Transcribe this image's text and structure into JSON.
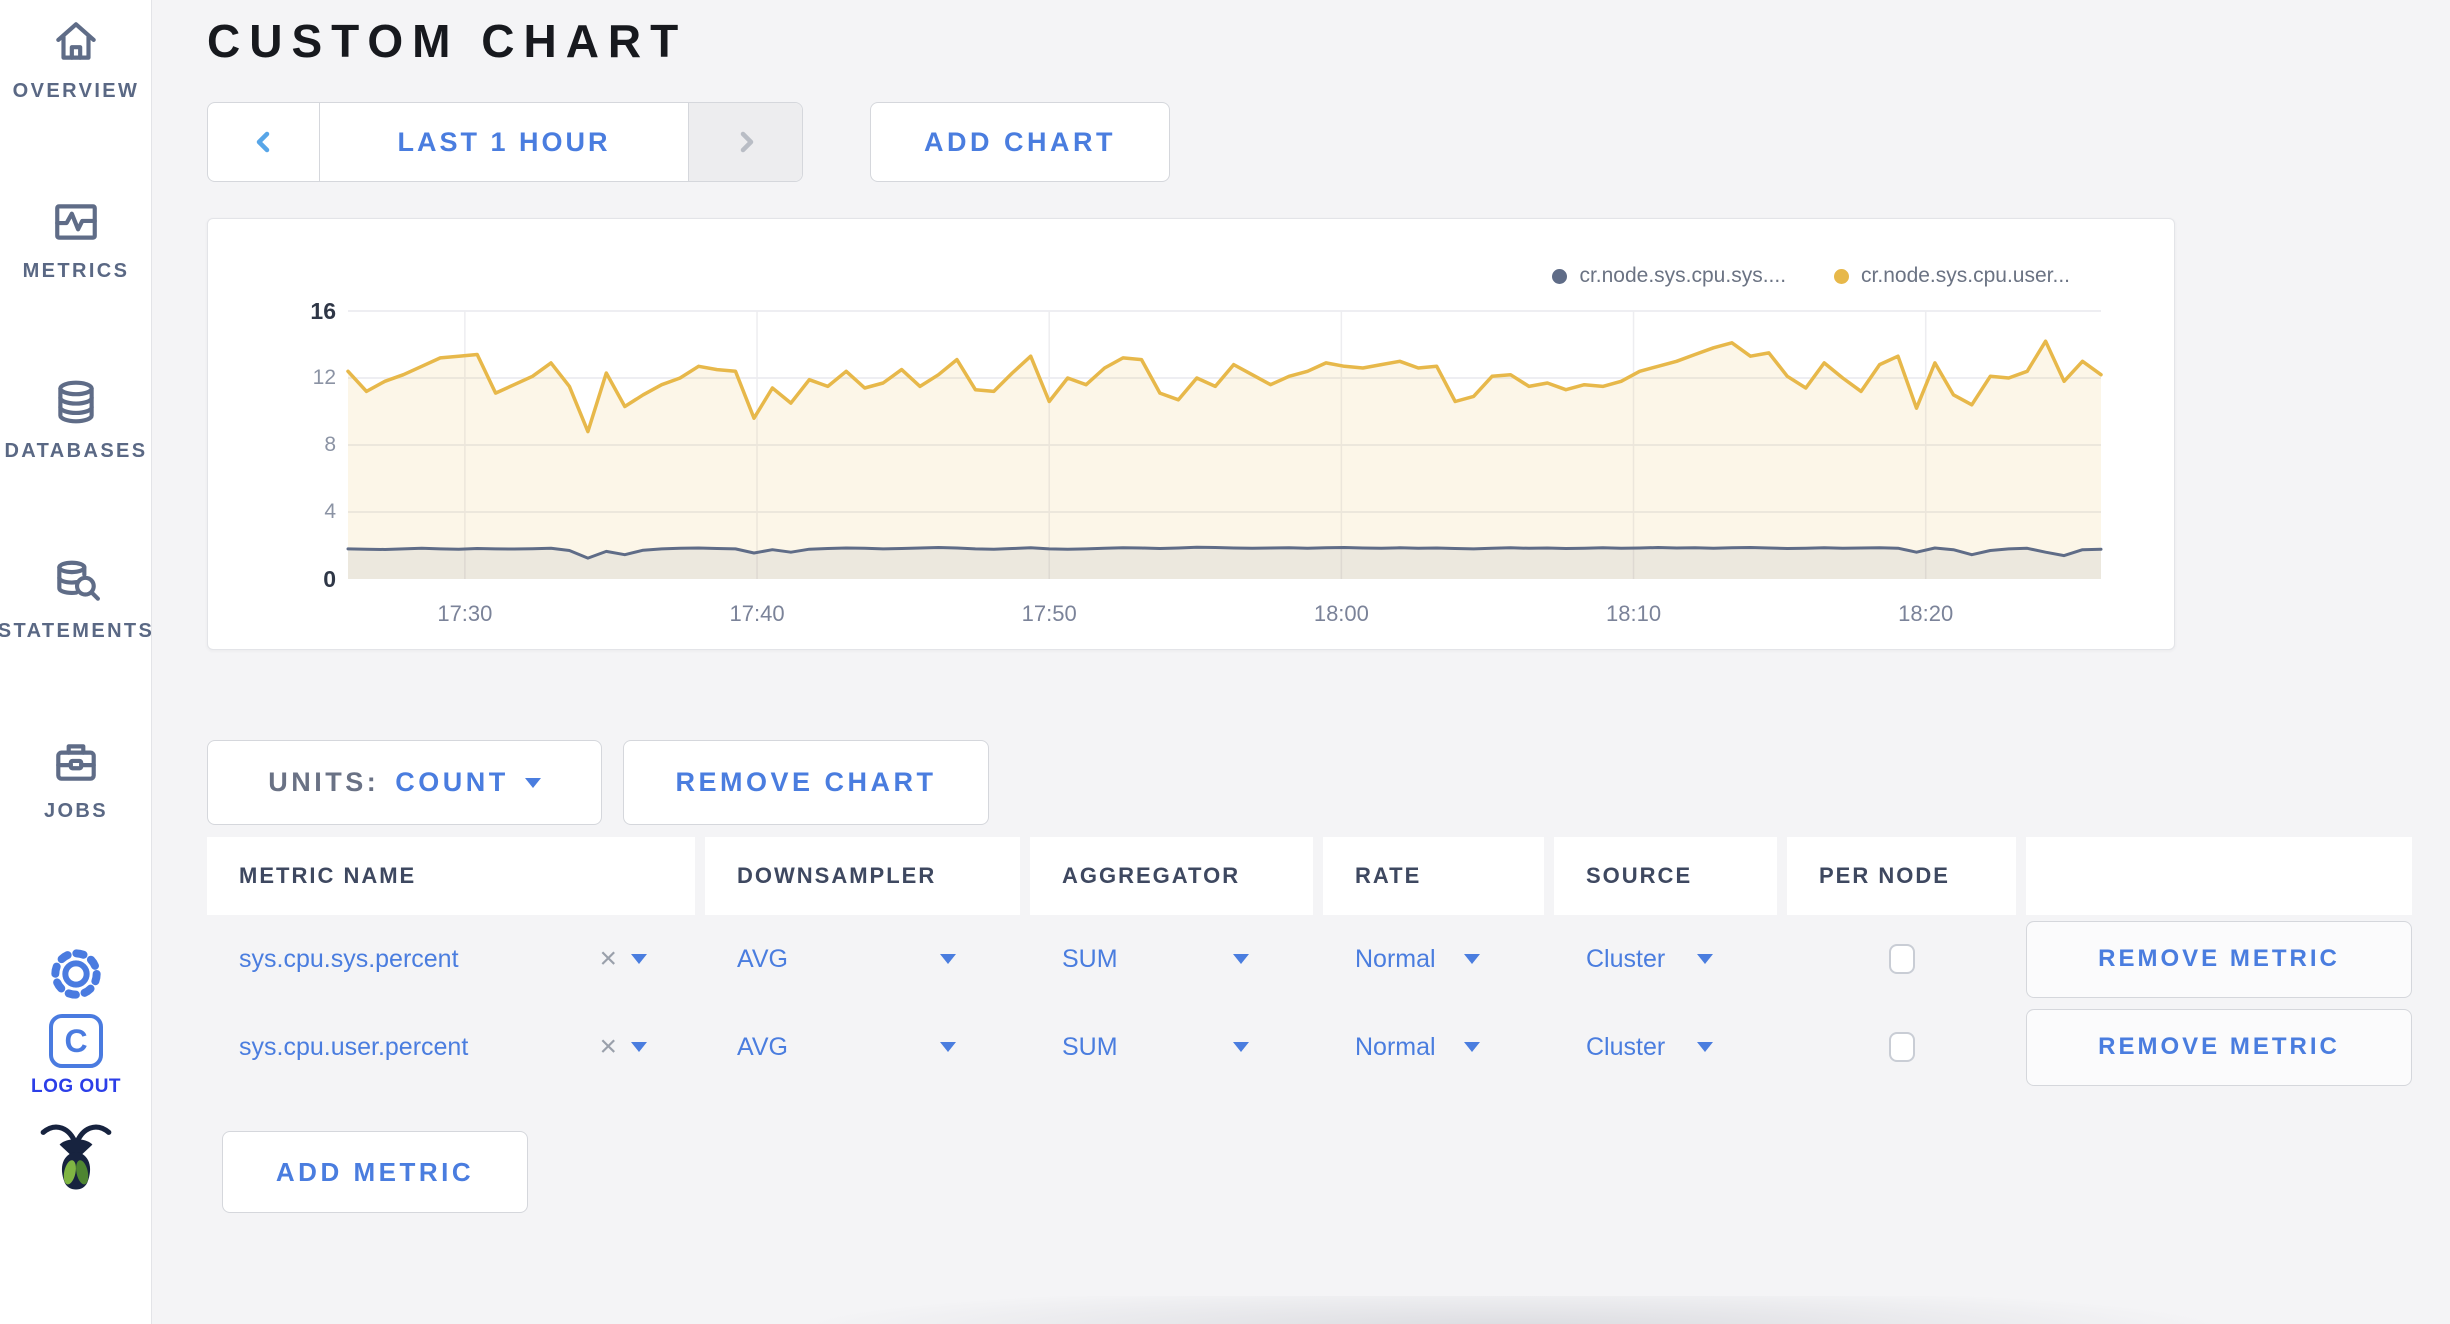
{
  "sidebar": {
    "items": [
      {
        "label": "OVERVIEW",
        "icon": "home-icon"
      },
      {
        "label": "METRICS",
        "icon": "metrics-icon"
      },
      {
        "label": "DATABASES",
        "icon": "databases-icon"
      },
      {
        "label": "STATEMENTS",
        "icon": "statements-icon"
      },
      {
        "label": "JOBS",
        "icon": "jobs-icon"
      }
    ],
    "log_out_label": "LOG OUT"
  },
  "header": {
    "title": "CUSTOM CHART"
  },
  "toolbar": {
    "time_range_label": "LAST 1 HOUR",
    "add_chart_label": "ADD CHART"
  },
  "chart_data": {
    "type": "line",
    "title": "",
    "xlabel": "",
    "ylabel": "",
    "ylim": [
      0,
      16
    ],
    "y_ticks": [
      0,
      4,
      8,
      12,
      16
    ],
    "x_range_minutes": [
      0,
      60
    ],
    "x_ticks": [
      {
        "label": "17:30",
        "minute": 4
      },
      {
        "label": "17:40",
        "minute": 14
      },
      {
        "label": "17:50",
        "minute": 24
      },
      {
        "label": "18:00",
        "minute": 34
      },
      {
        "label": "18:10",
        "minute": 44
      },
      {
        "label": "18:20",
        "minute": 54
      }
    ],
    "grid": true,
    "legend_position": "top-right",
    "series": [
      {
        "name": "cr.node.sys.cpu.sys....",
        "color": "#5f6c87",
        "fill": "rgba(95,108,135,0.10)",
        "values": [
          1.8,
          1.78,
          1.76,
          1.8,
          1.83,
          1.8,
          1.78,
          1.82,
          1.8,
          1.79,
          1.81,
          1.84,
          1.7,
          1.25,
          1.65,
          1.45,
          1.72,
          1.8,
          1.83,
          1.85,
          1.82,
          1.8,
          1.55,
          1.75,
          1.6,
          1.78,
          1.82,
          1.85,
          1.83,
          1.8,
          1.82,
          1.85,
          1.88,
          1.85,
          1.8,
          1.78,
          1.82,
          1.86,
          1.8,
          1.78,
          1.8,
          1.84,
          1.87,
          1.85,
          1.82,
          1.85,
          1.9,
          1.88,
          1.85,
          1.83,
          1.85,
          1.87,
          1.84,
          1.86,
          1.88,
          1.85,
          1.83,
          1.86,
          1.84,
          1.85,
          1.82,
          1.8,
          1.84,
          1.86,
          1.83,
          1.85,
          1.82,
          1.84,
          1.86,
          1.83,
          1.85,
          1.88,
          1.85,
          1.87,
          1.84,
          1.86,
          1.88,
          1.85,
          1.82,
          1.84,
          1.86,
          1.83,
          1.85,
          1.87,
          1.84,
          1.6,
          1.85,
          1.75,
          1.45,
          1.7,
          1.8,
          1.83,
          1.6,
          1.4,
          1.75,
          1.78
        ]
      },
      {
        "name": "cr.node.sys.cpu.user...",
        "color": "#e7b84a",
        "fill": "rgba(231,184,74,0.13)",
        "values": [
          12.4,
          11.2,
          11.8,
          12.2,
          12.7,
          13.2,
          13.3,
          13.4,
          11.1,
          11.6,
          12.1,
          12.9,
          11.5,
          8.8,
          12.3,
          10.3,
          11.0,
          11.6,
          12.0,
          12.7,
          12.5,
          12.4,
          9.6,
          11.4,
          10.5,
          11.9,
          11.5,
          12.4,
          11.4,
          11.7,
          12.5,
          11.5,
          12.2,
          13.1,
          11.3,
          11.2,
          12.3,
          13.3,
          10.6,
          12.0,
          11.6,
          12.6,
          13.2,
          13.1,
          11.1,
          10.7,
          12.0,
          11.5,
          12.8,
          12.2,
          11.6,
          12.1,
          12.4,
          12.9,
          12.7,
          12.6,
          12.8,
          13.0,
          12.6,
          12.7,
          10.6,
          10.9,
          12.1,
          12.2,
          11.5,
          11.7,
          11.3,
          11.6,
          11.5,
          11.8,
          12.4,
          12.7,
          13.0,
          13.4,
          13.8,
          14.1,
          13.3,
          13.5,
          12.1,
          11.4,
          12.9,
          12.0,
          11.2,
          12.8,
          13.3,
          10.2,
          12.9,
          11.0,
          10.4,
          12.1,
          12.0,
          12.4,
          14.2,
          11.8,
          13.0,
          12.2
        ]
      }
    ]
  },
  "units_bar": {
    "units_label": "UNITS:",
    "units_value": "COUNT",
    "remove_chart_label": "REMOVE CHART"
  },
  "metrics_table": {
    "columns": [
      "METRIC NAME",
      "DOWNSAMPLER",
      "AGGREGATOR",
      "RATE",
      "SOURCE",
      "PER NODE",
      ""
    ],
    "rows": [
      {
        "name": "sys.cpu.sys.percent",
        "downsampler": "AVG",
        "aggregator": "SUM",
        "rate": "Normal",
        "source": "Cluster",
        "per_node": false
      },
      {
        "name": "sys.cpu.user.percent",
        "downsampler": "AVG",
        "aggregator": "SUM",
        "rate": "Normal",
        "source": "Cluster",
        "per_node": false
      }
    ],
    "remove_metric_label": "REMOVE METRIC",
    "add_metric_label": "ADD METRIC"
  },
  "colors": {
    "accent_blue": "#4a7ddf",
    "slate": "#5f6c87",
    "logout_blue": "#2c3fe8",
    "series_yellow": "#e7b84a",
    "series_gray": "#5f6c87"
  }
}
